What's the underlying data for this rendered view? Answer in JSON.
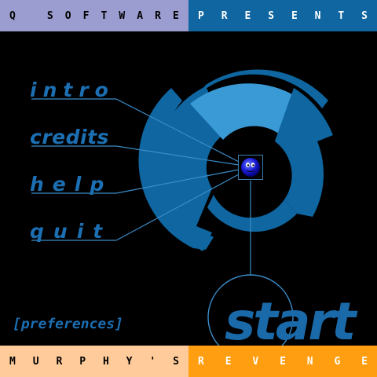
{
  "header": {
    "left_letters": [
      "Q",
      "S",
      "O",
      "F",
      "T",
      "W",
      "A",
      "R",
      "E"
    ],
    "right_letters": [
      "P",
      "R",
      "E",
      "S",
      "E",
      "N",
      "T",
      "S"
    ]
  },
  "footer": {
    "left_letters": [
      "M",
      "U",
      "R",
      "P",
      "H",
      "Y",
      "'",
      "S"
    ],
    "right_letters": [
      "R",
      "E",
      "V",
      "E",
      "N",
      "G",
      "E"
    ]
  },
  "menu": {
    "intro": "intro",
    "credits": "credits",
    "help": "help",
    "quit": "quit",
    "preferences": "[preferences]",
    "start": "start"
  },
  "colors": {
    "accent": "#1c6fb2",
    "ring_dark": "#0f66a0",
    "ring_light": "#3a9ad6",
    "header_left": "#9b9ccf",
    "header_right": "#0f66a0",
    "footer_left": "#ffcb9a",
    "footer_right": "#ff9e10"
  },
  "icons": {
    "avatar": "murphy-ball-icon"
  }
}
